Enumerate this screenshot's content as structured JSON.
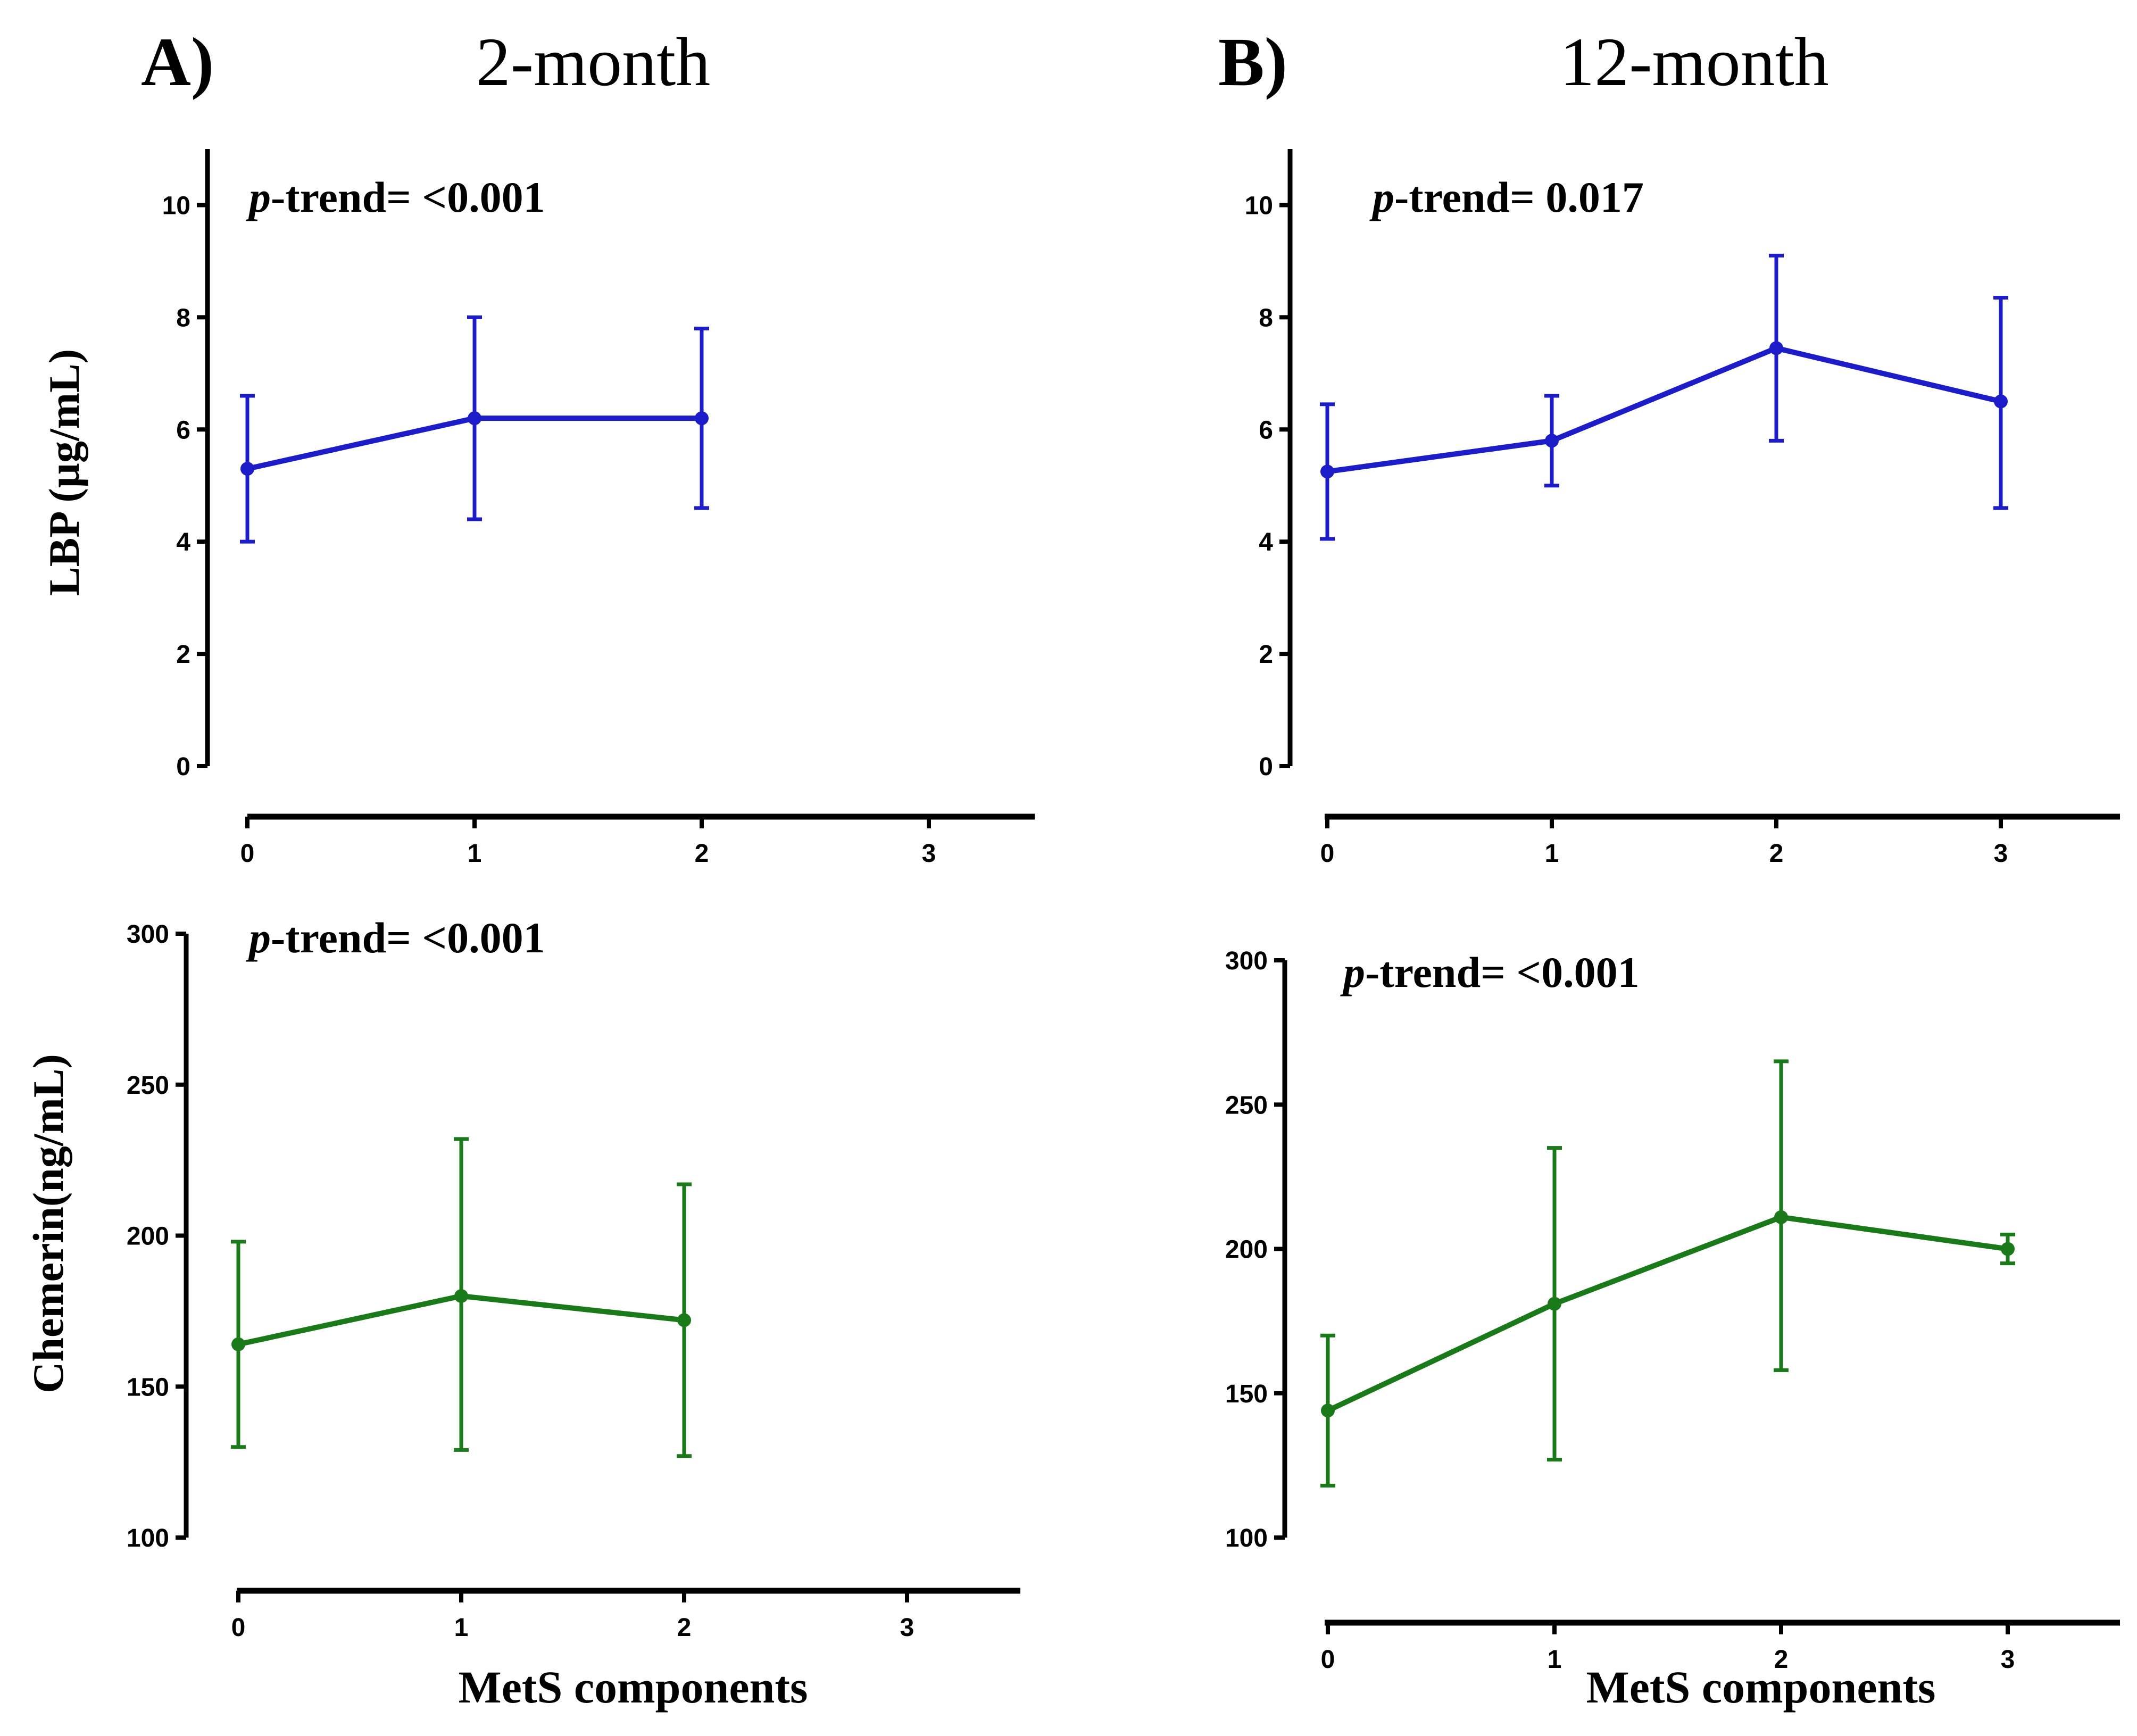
{
  "panels": [
    {
      "letter": "A)",
      "time": "2-month"
    },
    {
      "letter": "B)",
      "time": "12-month"
    }
  ],
  "x_axis_label": "MetS components",
  "y_axis_labels": {
    "lbp": "LBP (µg/mL)",
    "chemerin": "Chemerin(ng/mL)"
  },
  "ptrend_prefix": "p",
  "ptrend_suffix": "-trend=",
  "colors": {
    "lbp": "#1c1cc8",
    "chemerin": "#1a7a1a",
    "axis": "#000000"
  },
  "chart_data": [
    {
      "id": "lbp-2m",
      "type": "line",
      "panel": "A) 2-month",
      "ylabel": "LBP (µg/mL)",
      "xlabel": "",
      "x_ticks": [
        "0",
        "1",
        "2",
        "3"
      ],
      "xlim": [
        0,
        3.5
      ],
      "ylim": [
        0,
        11
      ],
      "y_ticks": [
        "0",
        "2",
        "4",
        "6",
        "8",
        "10"
      ],
      "ptrend": "<0.001",
      "series": [
        {
          "name": "LBP",
          "x": [
            0,
            1,
            2
          ],
          "y": [
            5.3,
            6.2,
            6.2
          ],
          "err_low": [
            4.0,
            4.4,
            4.6
          ],
          "err_high": [
            6.6,
            8.0,
            7.8
          ]
        }
      ]
    },
    {
      "id": "lbp-12m",
      "type": "line",
      "panel": "B) 12-month",
      "ylabel": "",
      "xlabel": "",
      "x_ticks": [
        "0",
        "1",
        "2",
        "3"
      ],
      "xlim": [
        0,
        3.5
      ],
      "ylim": [
        0,
        11
      ],
      "y_ticks": [
        "0",
        "2",
        "4",
        "6",
        "8",
        "10"
      ],
      "ptrend": "0.017",
      "series": [
        {
          "name": "LBP",
          "x": [
            0,
            1,
            2,
            3
          ],
          "y": [
            5.25,
            5.8,
            7.45,
            6.5
          ],
          "err_low": [
            4.05,
            5.0,
            5.8,
            4.6
          ],
          "err_high": [
            6.45,
            6.6,
            9.1,
            8.35
          ]
        }
      ]
    },
    {
      "id": "chemerin-2m",
      "type": "line",
      "panel": "A) 2-month",
      "ylabel": "Chemerin(ng/mL)",
      "xlabel": "MetS components",
      "x_ticks": [
        "0",
        "1",
        "2",
        "3"
      ],
      "xlim": [
        0,
        3.5
      ],
      "ylim": [
        100,
        300
      ],
      "y_ticks": [
        "100",
        "150",
        "200",
        "250",
        "300"
      ],
      "ptrend": "<0.001",
      "series": [
        {
          "name": "Chemerin",
          "x": [
            0,
            1,
            2
          ],
          "y": [
            164,
            180,
            172
          ],
          "err_low": [
            130,
            129,
            127
          ],
          "err_high": [
            198,
            232,
            217
          ]
        }
      ]
    },
    {
      "id": "chemerin-12m",
      "type": "line",
      "panel": "B) 12-month",
      "ylabel": "",
      "xlabel": "MetS components",
      "x_ticks": [
        "0",
        "1",
        "2",
        "3"
      ],
      "xlim": [
        0,
        3.5
      ],
      "ylim": [
        100,
        300
      ],
      "y_ticks": [
        "100",
        "150",
        "200",
        "250",
        "300"
      ],
      "ptrend": "<0.001",
      "series": [
        {
          "name": "Chemerin",
          "x": [
            0,
            1,
            2,
            3
          ],
          "y": [
            144,
            181,
            211,
            200
          ],
          "err_low": [
            118,
            127,
            158,
            195
          ],
          "err_high": [
            170,
            235,
            265,
            205
          ]
        }
      ]
    }
  ]
}
